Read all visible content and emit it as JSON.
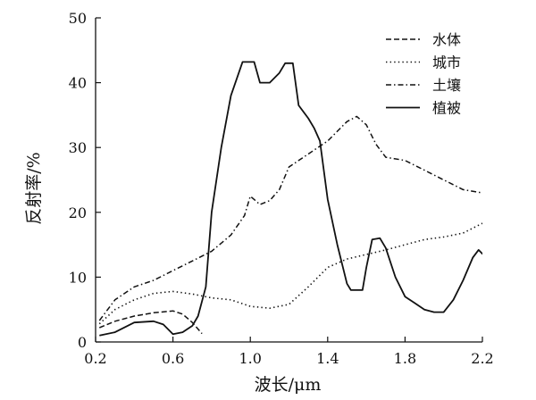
{
  "chart_data": {
    "type": "line",
    "title": "",
    "xlabel": "波长/μm",
    "ylabel": "反射率/%",
    "xlim": [
      0.2,
      2.2
    ],
    "ylim": [
      0,
      50
    ],
    "x_ticks": [
      "0.2",
      "0.6",
      "1.0",
      "1.4",
      "1.8",
      "2.2"
    ],
    "y_ticks": [
      "0",
      "10",
      "20",
      "30",
      "40",
      "50"
    ],
    "grid": false,
    "legend_position": "top-right",
    "series": [
      {
        "name": "水体",
        "line_style": "dashed",
        "points": [
          [
            0.22,
            2.2
          ],
          [
            0.3,
            3.2
          ],
          [
            0.4,
            4.0
          ],
          [
            0.5,
            4.5
          ],
          [
            0.6,
            4.8
          ],
          [
            0.65,
            4.3
          ],
          [
            0.7,
            3.0
          ],
          [
            0.75,
            1.3
          ]
        ]
      },
      {
        "name": "城市",
        "line_style": "dotted",
        "points": [
          [
            0.22,
            2.8
          ],
          [
            0.3,
            5.0
          ],
          [
            0.4,
            6.5
          ],
          [
            0.5,
            7.5
          ],
          [
            0.6,
            7.8
          ],
          [
            0.7,
            7.4
          ],
          [
            0.8,
            6.8
          ],
          [
            0.9,
            6.5
          ],
          [
            1.0,
            5.5
          ],
          [
            1.1,
            5.2
          ],
          [
            1.2,
            5.8
          ],
          [
            1.3,
            8.5
          ],
          [
            1.4,
            11.5
          ],
          [
            1.5,
            12.8
          ],
          [
            1.6,
            13.5
          ],
          [
            1.7,
            14.2
          ],
          [
            1.8,
            15.0
          ],
          [
            1.9,
            15.8
          ],
          [
            2.0,
            16.2
          ],
          [
            2.1,
            16.8
          ],
          [
            2.2,
            18.3
          ]
        ]
      },
      {
        "name": "土壤",
        "line_style": "dash-dot",
        "points": [
          [
            0.22,
            3.3
          ],
          [
            0.3,
            6.5
          ],
          [
            0.4,
            8.5
          ],
          [
            0.5,
            9.5
          ],
          [
            0.6,
            11.0
          ],
          [
            0.7,
            12.5
          ],
          [
            0.8,
            14.0
          ],
          [
            0.9,
            16.5
          ],
          [
            0.97,
            19.5
          ],
          [
            1.0,
            22.5
          ],
          [
            1.05,
            21.2
          ],
          [
            1.1,
            21.8
          ],
          [
            1.15,
            23.5
          ],
          [
            1.2,
            27.0
          ],
          [
            1.3,
            29.0
          ],
          [
            1.4,
            31.0
          ],
          [
            1.5,
            34.0
          ],
          [
            1.55,
            34.8
          ],
          [
            1.6,
            33.5
          ],
          [
            1.65,
            30.5
          ],
          [
            1.7,
            28.5
          ],
          [
            1.8,
            28.0
          ],
          [
            1.9,
            26.5
          ],
          [
            2.0,
            25.0
          ],
          [
            2.1,
            23.5
          ],
          [
            2.2,
            23.0
          ]
        ]
      },
      {
        "name": "植被",
        "line_style": "solid",
        "points": [
          [
            0.22,
            1.0
          ],
          [
            0.3,
            1.5
          ],
          [
            0.4,
            3.0
          ],
          [
            0.5,
            3.2
          ],
          [
            0.55,
            2.7
          ],
          [
            0.6,
            1.2
          ],
          [
            0.65,
            1.5
          ],
          [
            0.7,
            2.5
          ],
          [
            0.73,
            4.0
          ],
          [
            0.77,
            8.5
          ],
          [
            0.8,
            20.0
          ],
          [
            0.85,
            30.0
          ],
          [
            0.9,
            38.0
          ],
          [
            0.96,
            43.2
          ],
          [
            1.02,
            43.2
          ],
          [
            1.05,
            40.0
          ],
          [
            1.1,
            40.0
          ],
          [
            1.15,
            41.5
          ],
          [
            1.18,
            43.0
          ],
          [
            1.22,
            43.0
          ],
          [
            1.25,
            36.5
          ],
          [
            1.3,
            34.5
          ],
          [
            1.33,
            33.0
          ],
          [
            1.36,
            31.0
          ],
          [
            1.4,
            22.0
          ],
          [
            1.45,
            15.0
          ],
          [
            1.5,
            9.0
          ],
          [
            1.52,
            8.0
          ],
          [
            1.58,
            8.0
          ],
          [
            1.6,
            11.5
          ],
          [
            1.63,
            15.8
          ],
          [
            1.67,
            16.0
          ],
          [
            1.7,
            14.5
          ],
          [
            1.75,
            10.0
          ],
          [
            1.8,
            7.0
          ],
          [
            1.85,
            6.0
          ],
          [
            1.9,
            5.0
          ],
          [
            1.95,
            4.6
          ],
          [
            2.0,
            4.6
          ],
          [
            2.05,
            6.5
          ],
          [
            2.1,
            9.5
          ],
          [
            2.15,
            13.0
          ],
          [
            2.18,
            14.2
          ],
          [
            2.22,
            13.0
          ],
          [
            2.26,
            10.0
          ]
        ]
      }
    ]
  }
}
